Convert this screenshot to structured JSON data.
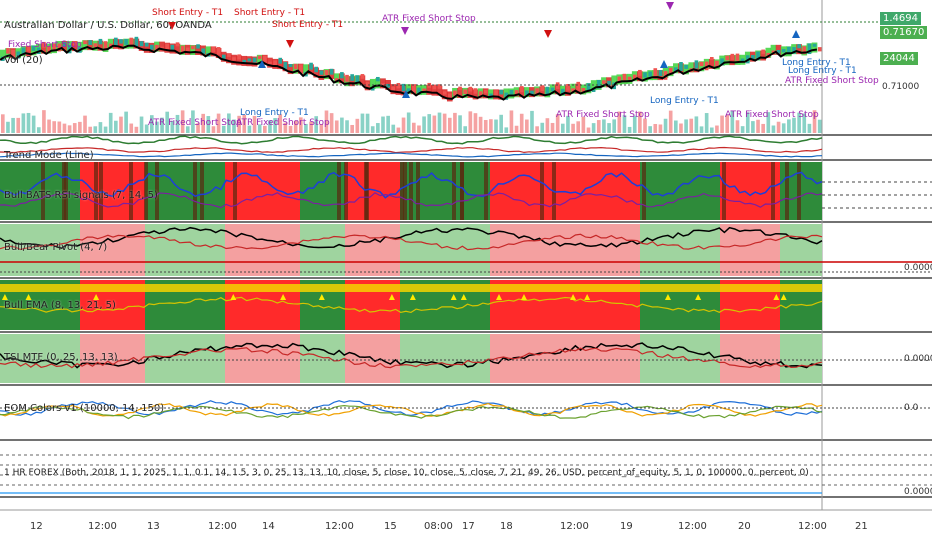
{
  "panes": {
    "main_title": "Australian Dollar / U.S. Dollar, 60, OANDA",
    "volume": "Vol (20)",
    "p3": "Trend Mode (Line)",
    "p4": "Bull BATS RSI signals (7, 14, 5)",
    "p5": "Bull/Bear Pivot (4, 7)",
    "p6": "Bull EMA (8, 13, 21, 5)",
    "p7": "TSI MTF (0, 25, 13, 13)",
    "p8": "EOM Colors v1 (10000, 14, 150)",
    "p9": "1 HR FOREX (Both, 2018, 1, 1, 2025, 1, 1, 0.1, 14, 1.5, 3, 0, 25, 13, 13, 10, close, 5, close, 10, close, 5, close, 7, 21, 49, 26, USD, percent_of_equity, 5, 1, 0, 100000, 0, percent, 0)"
  },
  "price_tags": {
    "main_price": "1.4694",
    "main_value": "0.71670",
    "volume_value": "24044",
    "level_1": "0.71000",
    "p5_value": "0.0000",
    "p7_value": "0.0000",
    "p8_value": "0.0",
    "p9_value": "0.0000"
  },
  "time_axis": [
    "12",
    "12:00",
    "13",
    "12:00",
    "14",
    "12:00",
    "15",
    "08:00",
    "17",
    "18",
    "12:00",
    "19",
    "12:00",
    "20",
    "12:00",
    "21"
  ],
  "signals": [
    {
      "text": "Short Entry - T1",
      "type": "short"
    },
    {
      "text": "ATR Fixed Short Stop",
      "type": "stop"
    },
    {
      "text": "Short Entry - T1",
      "type": "short"
    },
    {
      "text": "ATR Fixed Short Stop",
      "type": "stop"
    },
    {
      "text": "Short Entry - T1",
      "type": "short"
    },
    {
      "text": "Fixed Short Stop",
      "type": "stop"
    },
    {
      "text": "Long Entry - T1",
      "type": "long"
    },
    {
      "text": "ATR Fixed Short Stop",
      "type": "stop"
    },
    {
      "text": "Long Entry - T1",
      "type": "long"
    },
    {
      "text": "ATR Fixed Short Stop",
      "type": "stop"
    },
    {
      "text": "Long Entry - T1",
      "type": "long"
    },
    {
      "text": "ATR Fixed Short Stop",
      "type": "stop"
    },
    {
      "text": "Long Entry - T1",
      "type": "long"
    },
    {
      "text": "ATR Fixed Short Stop",
      "type": "stop"
    }
  ],
  "colors": {
    "bull": "#2e8b3a",
    "bear": "#ff2a2a",
    "pink": "#f4a0a0",
    "lightgreen": "#9fd49f",
    "price_tag": "#3fa86a"
  }
}
